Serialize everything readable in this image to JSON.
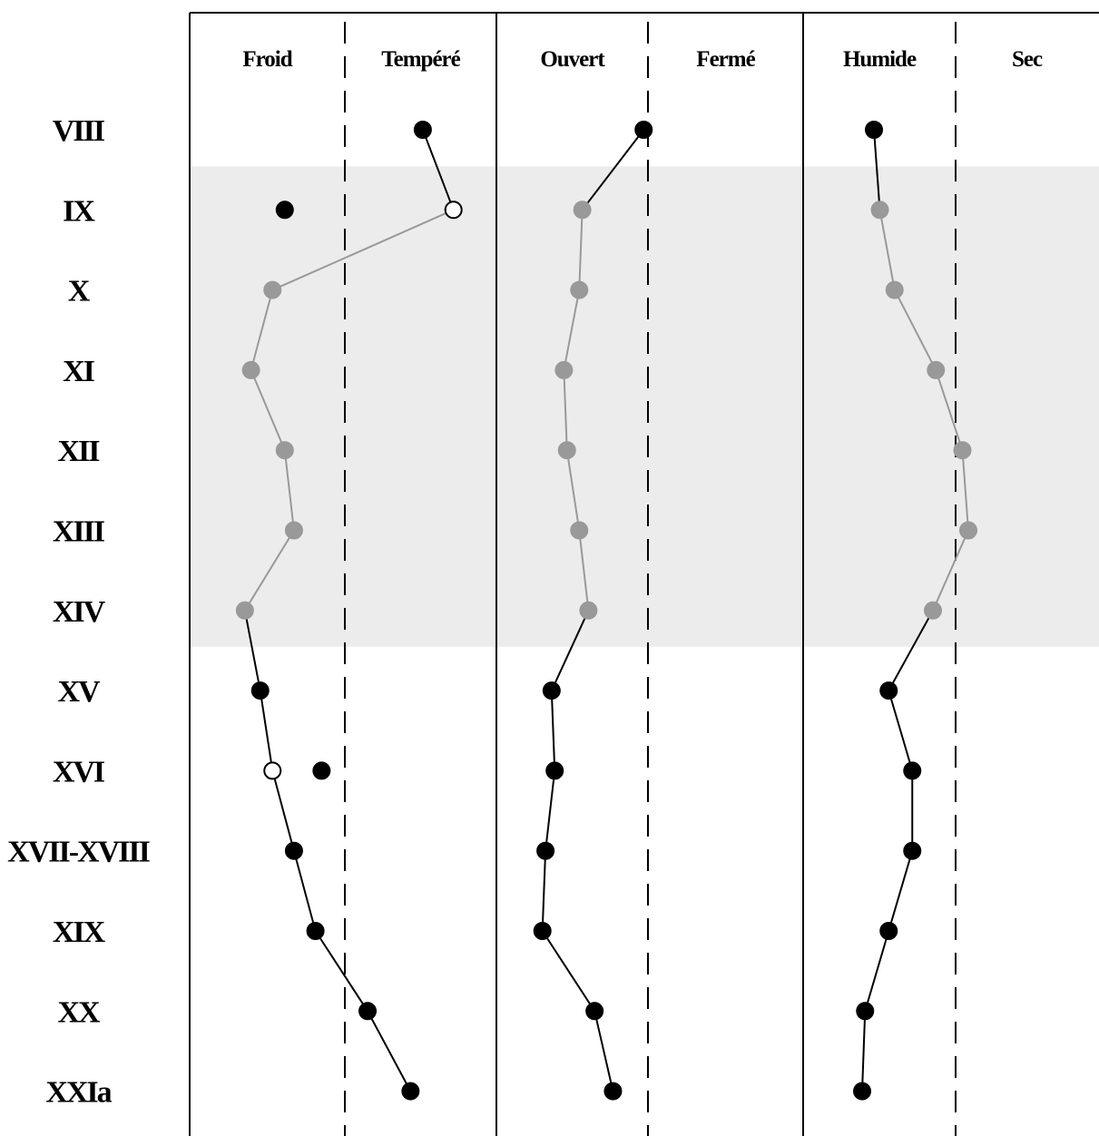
{
  "chart_data": {
    "type": "line",
    "periods": [
      "VIII",
      "IX",
      "X",
      "XI",
      "XII",
      "XIII",
      "XIV",
      "XV",
      "XVI",
      "XVII-XVIII",
      "XIX",
      "XX",
      "XXIa"
    ],
    "panels": [
      {
        "id": "temperature",
        "left_label": "Froid",
        "right_label": "Tempéré",
        "series": [
          {
            "period": "VIII",
            "value": 0.76,
            "style": "black"
          },
          {
            "period": "IX",
            "value": 0.86,
            "style": "open"
          },
          {
            "period": "X",
            "value": 0.27,
            "style": "grey"
          },
          {
            "period": "XI",
            "value": 0.2,
            "style": "grey"
          },
          {
            "period": "XII",
            "value": 0.31,
            "style": "grey"
          },
          {
            "period": "XIII",
            "value": 0.34,
            "style": "grey"
          },
          {
            "period": "XIV",
            "value": 0.18,
            "style": "grey"
          },
          {
            "period": "XV",
            "value": 0.23,
            "style": "black"
          },
          {
            "period": "XVI",
            "value": 0.27,
            "style": "open"
          },
          {
            "period": "XVII-XVIII",
            "value": 0.34,
            "style": "black"
          },
          {
            "period": "XIX",
            "value": 0.41,
            "style": "black"
          },
          {
            "period": "XX",
            "value": 0.58,
            "style": "black"
          },
          {
            "period": "XXIa",
            "value": 0.72,
            "style": "black"
          }
        ],
        "extra_points": [
          {
            "period": "IX",
            "value": 0.31,
            "style": "black"
          },
          {
            "period": "XVI",
            "value": 0.43,
            "style": "black"
          }
        ]
      },
      {
        "id": "openness",
        "left_label": "Ouvert",
        "right_label": "Fermé",
        "series": [
          {
            "period": "VIII",
            "value": 0.48,
            "style": "black"
          },
          {
            "period": "IX",
            "value": 0.28,
            "style": "grey"
          },
          {
            "period": "X",
            "value": 0.27,
            "style": "grey"
          },
          {
            "period": "XI",
            "value": 0.22,
            "style": "grey"
          },
          {
            "period": "XII",
            "value": 0.23,
            "style": "grey"
          },
          {
            "period": "XIII",
            "value": 0.27,
            "style": "grey"
          },
          {
            "period": "XIV",
            "value": 0.3,
            "style": "grey"
          },
          {
            "period": "XV",
            "value": 0.18,
            "style": "black"
          },
          {
            "period": "XVI",
            "value": 0.19,
            "style": "black"
          },
          {
            "period": "XVII-XVIII",
            "value": 0.16,
            "style": "black"
          },
          {
            "period": "XIX",
            "value": 0.15,
            "style": "black"
          },
          {
            "period": "XX",
            "value": 0.32,
            "style": "black"
          },
          {
            "period": "XXIa",
            "value": 0.38,
            "style": "black"
          }
        ],
        "extra_points": []
      },
      {
        "id": "humidity",
        "left_label": "Humide",
        "right_label": "Sec",
        "series": [
          {
            "period": "VIII",
            "value": 0.24,
            "style": "black"
          },
          {
            "period": "IX",
            "value": 0.26,
            "style": "grey"
          },
          {
            "period": "X",
            "value": 0.31,
            "style": "grey"
          },
          {
            "period": "XI",
            "value": 0.45,
            "style": "grey"
          },
          {
            "period": "XII",
            "value": 0.54,
            "style": "grey"
          },
          {
            "period": "XIII",
            "value": 0.56,
            "style": "grey"
          },
          {
            "period": "XIV",
            "value": 0.44,
            "style": "grey"
          },
          {
            "period": "XV",
            "value": 0.29,
            "style": "black"
          },
          {
            "period": "XVI",
            "value": 0.37,
            "style": "black"
          },
          {
            "period": "XVII-XVIII",
            "value": 0.37,
            "style": "black"
          },
          {
            "period": "XIX",
            "value": 0.29,
            "style": "black"
          },
          {
            "period": "XX",
            "value": 0.21,
            "style": "black"
          },
          {
            "period": "XXIa",
            "value": 0.2,
            "style": "black"
          }
        ],
        "extra_points": []
      }
    ],
    "shaded_periods": [
      "IX",
      "XIV"
    ],
    "colors": {
      "black_marker": "#000000",
      "grey_marker": "#999999",
      "grey_line": "#999999",
      "open_marker_fill": "#ffffff",
      "shade": "#ececec",
      "axis": "#000000"
    },
    "grid": false
  }
}
